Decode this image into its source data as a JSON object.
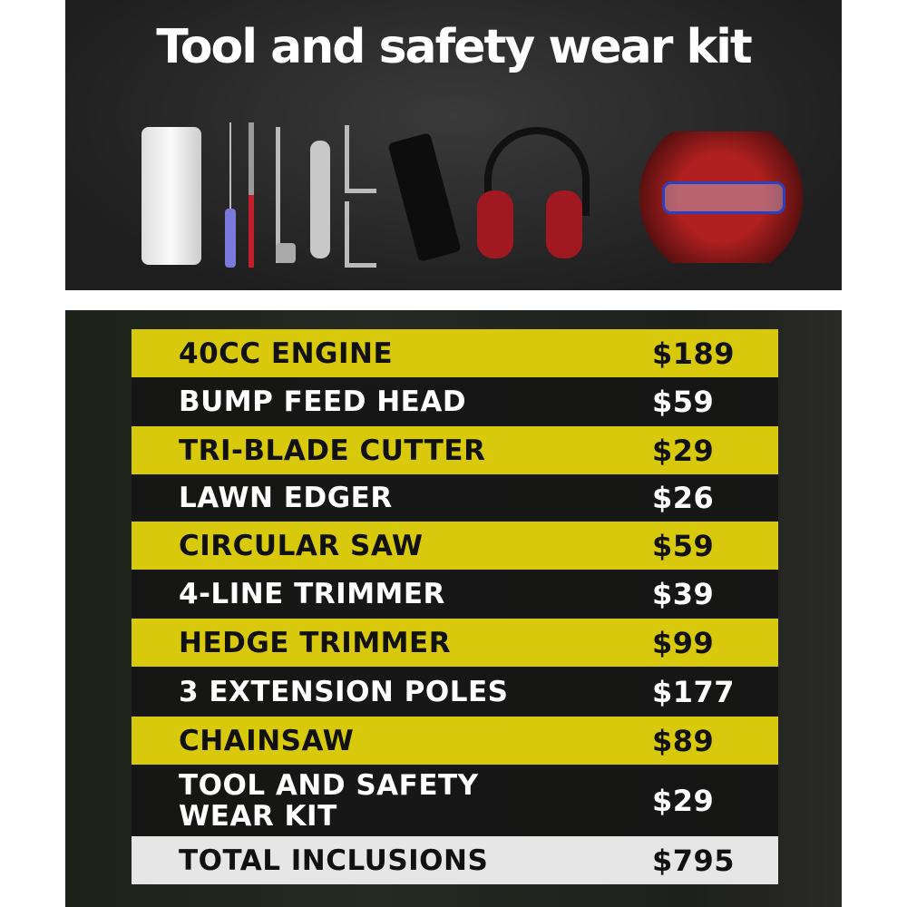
{
  "header": {
    "title": "Tool and safety wear kit"
  },
  "kit_items": [
    "oil-bottle-icon",
    "screwdriver-icon",
    "spark-plug-wrench-icon",
    "spanner-icon",
    "hex-key-icon",
    "shoulder-strap-icon",
    "ear-muffs-icon",
    "safety-glasses-and-gloves-icon"
  ],
  "colors": {
    "yellow": "#d9c90d",
    "dark": "#141414",
    "total": "#e6e6e6"
  },
  "inclusions": [
    {
      "label": "40CC ENGINE",
      "price": "$189"
    },
    {
      "label": "BUMP FEED HEAD",
      "price": "$59"
    },
    {
      "label": "TRI-BLADE CUTTER",
      "price": "$29"
    },
    {
      "label": "LAWN EDGER",
      "price": "$26"
    },
    {
      "label": "CIRCULAR SAW",
      "price": "$59"
    },
    {
      "label": "4-LINE TRIMMER",
      "price": "$39"
    },
    {
      "label": "HEDGE TRIMMER",
      "price": "$99"
    },
    {
      "label": "3 EXTENSION POLES",
      "price": "$177"
    },
    {
      "label": "CHAINSAW",
      "price": "$89"
    },
    {
      "label": "TOOL AND SAFETY WEAR KIT",
      "price": "$29"
    }
  ],
  "total": {
    "label": "TOTAL INCLUSIONS",
    "price": "$795"
  }
}
